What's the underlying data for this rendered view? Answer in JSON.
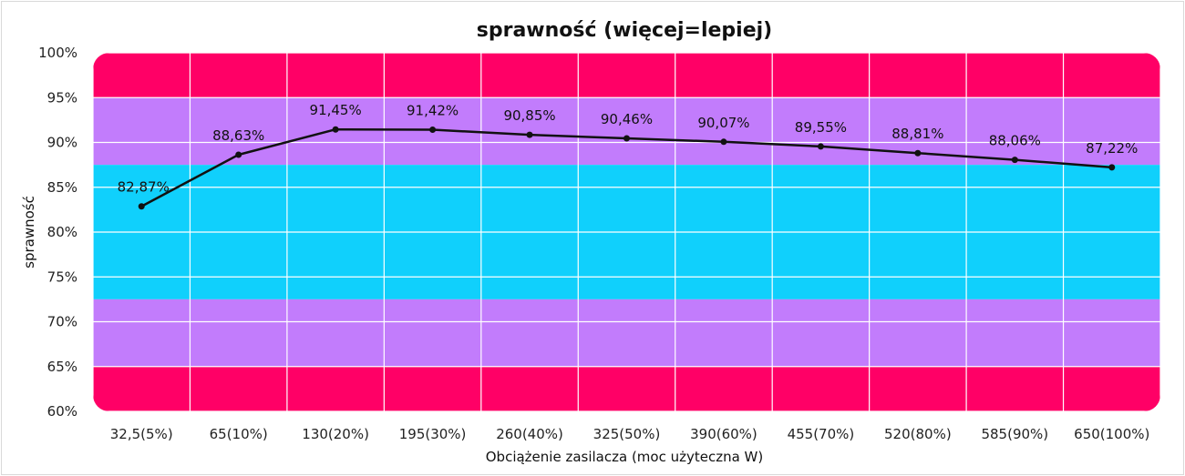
{
  "chart_data": {
    "type": "line",
    "title": "sprawność (więcej=lepiej)",
    "xlabel": "Obciążenie zasilacza (moc użyteczna W)",
    "ylabel": "sprawność",
    "categories": [
      "32,5(5%)",
      "65(10%)",
      "130(20%)",
      "195(30%)",
      "260(40%)",
      "325(50%)",
      "390(60%)",
      "455(70%)",
      "520(80%)",
      "585(90%)",
      "650(100%)"
    ],
    "series": [
      {
        "values": [
          82.87,
          88.63,
          91.45,
          91.42,
          90.85,
          90.46,
          90.07,
          89.55,
          88.81,
          88.06,
          87.22
        ],
        "labels": [
          "82,87%",
          "88,63%",
          "91,45%",
          "91,42%",
          "90,85%",
          "90,46%",
          "90,07%",
          "89,55%",
          "88,81%",
          "88,06%",
          "87,22%"
        ],
        "color": "#111111"
      }
    ],
    "ylim": [
      60,
      100
    ],
    "yticks": [
      100,
      95,
      90,
      85,
      80,
      75,
      70,
      65,
      60
    ],
    "ytick_labels": [
      "100%",
      "95%",
      "90%",
      "85%",
      "80%",
      "75%",
      "70%",
      "65%",
      "60%"
    ],
    "grid": true,
    "background_bands": [
      {
        "from": 95,
        "to": 100,
        "color": "#ff0066"
      },
      {
        "from": 87.5,
        "to": 95,
        "color": "#c27cfc"
      },
      {
        "from": 72.5,
        "to": 87.5,
        "color": "#10d0fc"
      },
      {
        "from": 65,
        "to": 72.5,
        "color": "#c27cfc"
      },
      {
        "from": 60,
        "to": 65,
        "color": "#ff0066"
      }
    ]
  }
}
